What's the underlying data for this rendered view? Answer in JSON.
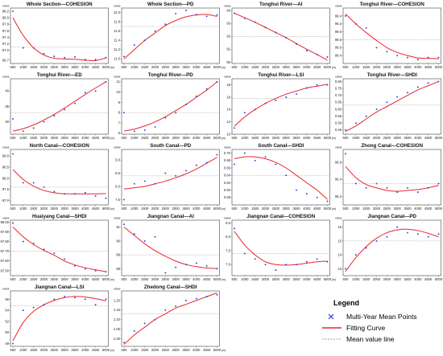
{
  "x_tick_labels": [
    "500",
    "1000",
    "1500",
    "2000",
    "2500",
    "3000",
    "3500",
    "4000",
    "4500",
    "5000"
  ],
  "x_unit": "(m)",
  "y_axis_name": "value",
  "legend": {
    "title": "Legend",
    "points_label": "Multi-Year Mean Points",
    "curve_label": "Fitting Curve",
    "mean_label": "Mean value line"
  },
  "colors": {
    "points": "#2c3fd6",
    "fitting_curve": "#e8262b",
    "mean_line": "#9a9a9a"
  },
  "chart_data": [
    {
      "type": "scatter",
      "title": "Whole Section—COHESION",
      "x": [
        500,
        1000,
        1500,
        2000,
        2500,
        3000,
        3500,
        4000,
        4500,
        5000
      ],
      "values": [
        98.2,
        97.08,
        97.08,
        96.9,
        96.82,
        96.78,
        96.8,
        96.72,
        96.72,
        96.78
      ],
      "fit": [
        98.0,
        97.46,
        97.08,
        96.86,
        96.76,
        96.74,
        96.73,
        96.7,
        96.69,
        96.77
      ],
      "mean": 97.1,
      "ylim": [
        96.6,
        98.3
      ],
      "yticks": [
        [
          "96.7",
          "96.7"
        ],
        [
          "97.0",
          "97.0"
        ],
        [
          "97.2",
          "97.2"
        ],
        [
          "97.4",
          "97.4"
        ],
        [
          "97.6",
          "97.6"
        ],
        [
          "97.8",
          "97.8"
        ],
        [
          "98.0",
          "98.0"
        ],
        [
          "98.2",
          "98.2"
        ]
      ]
    },
    {
      "type": "scatter",
      "title": "Whole Section—PD",
      "x": [
        500,
        1000,
        1500,
        2000,
        2500,
        3000,
        3500,
        4000,
        4500,
        5000
      ],
      "values": [
        11.05,
        11.3,
        11.4,
        11.6,
        11.75,
        11.98,
        12.05,
        11.96,
        11.92,
        11.95
      ],
      "fit": [
        11.0,
        11.2,
        11.4,
        11.56,
        11.72,
        11.83,
        11.91,
        11.95,
        11.96,
        11.92
      ],
      "mean": 11.7,
      "ylim": [
        10.9,
        12.1
      ],
      "yticks": [
        [
          "11.0",
          "11.0"
        ],
        [
          "11.2",
          "11.2"
        ],
        [
          "11.4",
          "11.4"
        ],
        [
          "11.6",
          "11.6"
        ],
        [
          "11.8",
          "11.8"
        ],
        [
          "12.0",
          "12.0"
        ]
      ]
    },
    {
      "type": "scatter",
      "title": "Tonghui River—AI",
      "x": [
        500,
        1000,
        1500,
        2000,
        2500,
        3000,
        3500,
        4000,
        4500,
        5000
      ],
      "values": [
        93.8,
        93.4,
        93.1,
        92.7,
        92.3,
        91.9,
        91.4,
        90.9,
        90.6,
        90.4
      ],
      "fit": [
        93.8,
        93.45,
        93.1,
        92.7,
        92.3,
        91.9,
        91.45,
        91.0,
        90.6,
        90.15
      ],
      "mean": 92.0,
      "ylim": [
        89.9,
        94.2
      ],
      "yticks": [
        [
          "90",
          "90"
        ],
        [
          "91",
          "91"
        ],
        [
          "92",
          "92"
        ],
        [
          "93",
          "93"
        ],
        [
          "94",
          "94"
        ]
      ]
    },
    {
      "type": "scatter",
      "title": "Tonghui River—COHESION",
      "x": [
        500,
        1000,
        1500,
        2000,
        2500,
        3000,
        3500,
        4000,
        4500,
        5000
      ],
      "values": [
        99.4,
        99.2,
        99.1,
        98.6,
        98.5,
        98.4,
        98.35,
        98.3,
        98.35,
        98.35
      ],
      "fit": [
        99.45,
        99.2,
        98.98,
        98.78,
        98.6,
        98.48,
        98.4,
        98.34,
        98.33,
        98.32
      ],
      "mean": 98.8,
      "ylim": [
        98.2,
        99.6
      ],
      "yticks": [
        [
          "98.4",
          "98.4"
        ],
        [
          "98.6",
          "98.6"
        ],
        [
          "98.8",
          "98.8"
        ],
        [
          "99.0",
          "99.0"
        ],
        [
          "99.2",
          "99.2"
        ],
        [
          "99.4",
          "99.4"
        ]
      ]
    },
    {
      "type": "scatter",
      "title": "Tonghui River—ED",
      "x": [
        500,
        1000,
        1500,
        2000,
        2500,
        3000,
        3500,
        4000,
        4500,
        5000
      ],
      "values": [
        31.0,
        27.0,
        28.0,
        30.0,
        32.0,
        34.0,
        36.0,
        39.5,
        40.0,
        43.0
      ],
      "fit": [
        27.0,
        27.8,
        29.0,
        30.6,
        32.4,
        34.5,
        36.7,
        38.9,
        41.0,
        43.0
      ],
      "mean": 33.0,
      "ylim": [
        26,
        44
      ],
      "yticks": [
        [
          "30",
          "30"
        ],
        [
          "35",
          "35"
        ],
        [
          "40",
          "40"
        ]
      ]
    },
    {
      "type": "scatter",
      "title": "Tonghui River—PD",
      "x": [
        500,
        1000,
        1500,
        2000,
        2500,
        3000,
        3500,
        4000,
        4500,
        5000
      ],
      "values": [
        8.0,
        6.2,
        6.3,
        6.6,
        7.5,
        8.0,
        8.8,
        9.6,
        10.3,
        11.0
      ],
      "fit": [
        6.2,
        6.4,
        6.7,
        7.1,
        7.6,
        8.2,
        8.8,
        9.5,
        10.2,
        11.0
      ],
      "mean": 8.0,
      "ylim": [
        5.9,
        11.3
      ],
      "yticks": [
        [
          "6",
          "6"
        ],
        [
          "7",
          "7"
        ],
        [
          "8",
          "8"
        ],
        [
          "9",
          "9"
        ],
        [
          "10",
          "10"
        ],
        [
          "11",
          "11"
        ]
      ]
    },
    {
      "type": "scatter",
      "title": "Tonghui River—LSI",
      "x": [
        500,
        1000,
        1500,
        2000,
        2500,
        3000,
        3500,
        4000,
        4500,
        5000
      ],
      "values": [
        11.0,
        13.5,
        14.0,
        15.0,
        15.5,
        16.0,
        16.5,
        17.5,
        18.0,
        18.0
      ],
      "fit": [
        11.3,
        12.8,
        14.0,
        15.0,
        15.8,
        16.5,
        17.0,
        17.5,
        17.8,
        18.1
      ],
      "mean": 15.8,
      "ylim": [
        10,
        19
      ],
      "yticks": [
        [
          "10",
          "10"
        ],
        [
          "12",
          "12"
        ],
        [
          "14",
          "14"
        ],
        [
          "16",
          "16"
        ],
        [
          "18",
          "18"
        ]
      ]
    },
    {
      "type": "scatter",
      "title": "Tonghui River—SHDI",
      "x": [
        500,
        1000,
        1500,
        2000,
        2500,
        3000,
        3500,
        4000,
        4500,
        5000
      ],
      "values": [
        0.45,
        0.5,
        0.55,
        0.6,
        0.65,
        0.69,
        0.72,
        0.76,
        0.79,
        0.8
      ],
      "fit": [
        0.44,
        0.48,
        0.53,
        0.58,
        0.62,
        0.66,
        0.7,
        0.74,
        0.77,
        0.8
      ],
      "mean": 0.63,
      "ylim": [
        0.42,
        0.82
      ],
      "yticks": [
        [
          "0.45",
          "0.45"
        ],
        [
          "0.50",
          "0.50"
        ],
        [
          "0.55",
          "0.55"
        ],
        [
          "0.60",
          "0.60"
        ],
        [
          "0.65",
          "0.65"
        ],
        [
          "0.70",
          "0.70"
        ],
        [
          "0.75",
          "0.75"
        ],
        [
          "0.80",
          "0.80"
        ]
      ]
    },
    {
      "type": "scatter",
      "title": "North Canal—COHESION",
      "x": [
        500,
        1000,
        1500,
        2000,
        2500,
        3000,
        3500,
        4000,
        4500,
        5000
      ],
      "values": [
        99.1,
        97.8,
        97.8,
        97.6,
        97.4,
        97.3,
        97.3,
        97.35,
        97.2,
        97.1
      ],
      "fit": [
        98.4,
        97.95,
        97.65,
        97.45,
        97.35,
        97.3,
        97.3,
        97.3,
        97.3,
        97.31
      ],
      "mean": 97.6,
      "ylim": [
        96.8,
        99.3
      ],
      "yticks": [
        [
          "97.0",
          "97.0"
        ],
        [
          "97.5",
          "97.5"
        ],
        [
          "98.0",
          "98.0"
        ],
        [
          "98.5",
          "98.5"
        ],
        [
          "99.0",
          "99.0"
        ]
      ]
    },
    {
      "type": "scatter",
      "title": "South Canal—PD",
      "x": [
        500,
        1000,
        1500,
        2000,
        2500,
        3000,
        3500,
        4000,
        4500,
        5000
      ],
      "values": [
        7.5,
        8.1,
        8.2,
        8.1,
        8.5,
        8.4,
        8.6,
        8.8,
        8.9,
        9.2
      ],
      "fit": [
        7.9,
        7.95,
        8.0,
        8.1,
        8.2,
        8.33,
        8.48,
        8.66,
        8.88,
        9.1
      ],
      "mean": 8.4,
      "ylim": [
        7.3,
        9.4
      ],
      "yticks": [
        [
          "7.5",
          "7.5"
        ],
        [
          "8.0",
          "8.0"
        ],
        [
          "8.5",
          "8.5"
        ],
        [
          "9.0",
          "9.0"
        ]
      ]
    },
    {
      "type": "scatter",
      "title": "South Canal—SHDI",
      "x": [
        500,
        1000,
        1500,
        2000,
        2500,
        3000,
        3500,
        4000,
        4500,
        5000
      ],
      "values": [
        0.67,
        0.7,
        0.68,
        0.69,
        0.67,
        0.64,
        0.6,
        0.59,
        0.58,
        0.57
      ],
      "fit": [
        0.685,
        0.69,
        0.69,
        0.685,
        0.675,
        0.66,
        0.64,
        0.62,
        0.6,
        0.575
      ],
      "mean": 0.64,
      "ylim": [
        0.56,
        0.71
      ],
      "yticks": [
        [
          "0.58",
          "0.58"
        ],
        [
          "0.60",
          "0.60"
        ],
        [
          "0.62",
          "0.62"
        ],
        [
          "0.64",
          "0.64"
        ],
        [
          "0.66",
          "0.66"
        ],
        [
          "0.68",
          "0.68"
        ],
        [
          "0.70",
          "0.70"
        ]
      ]
    },
    {
      "type": "scatter",
      "title": "Zhong Canal—COHESION",
      "x": [
        500,
        1000,
        1500,
        2000,
        2500,
        3000,
        3500,
        4000,
        4500,
        5000
      ],
      "values": [
        96.7,
        96.35,
        96.3,
        96.35,
        96.3,
        96.25,
        96.3,
        96.25,
        96.3,
        96.35
      ],
      "fit": [
        96.55,
        96.42,
        96.34,
        96.3,
        96.27,
        96.26,
        96.27,
        96.28,
        96.3,
        96.33
      ],
      "mean": 96.35,
      "ylim": [
        96.1,
        96.75
      ],
      "yticks": [
        [
          "96.2",
          "96.2"
        ],
        [
          "96.4",
          "96.4"
        ],
        [
          "96.6",
          "96.6"
        ]
      ]
    },
    {
      "type": "scatter",
      "title": "Huaiyang Canal—SHDI",
      "x": [
        500,
        1000,
        1500,
        2000,
        2500,
        3000,
        3500,
        4000,
        4500,
        5000
      ],
      "values": [
        97.99,
        97.8,
        97.78,
        97.72,
        97.68,
        97.62,
        97.55,
        97.52,
        97.5,
        97.49
      ],
      "fit": [
        97.95,
        97.85,
        97.77,
        97.71,
        97.66,
        97.6,
        97.56,
        97.53,
        97.51,
        97.49
      ],
      "mean": 97.7,
      "ylim": [
        97.45,
        98.02
      ],
      "yticks": [
        [
          "97.50",
          "97.50"
        ],
        [
          "97.60",
          "97.60"
        ],
        [
          "97.70",
          "97.70"
        ],
        [
          "97.80",
          "97.80"
        ],
        [
          "97.90",
          "97.90"
        ],
        [
          "98.00",
          "98.00"
        ]
      ]
    },
    {
      "type": "scatter",
      "title": "Jiangnan Canal—AI",
      "x": [
        500,
        1000,
        1500,
        2000,
        2500,
        3000,
        3500,
        4000,
        4500,
        5000
      ],
      "values": [
        91.2,
        90.5,
        90.0,
        90.3,
        87.7,
        88.1,
        88.3,
        88.4,
        88.2,
        88.0
      ],
      "fit": [
        91.0,
        90.4,
        89.8,
        89.3,
        88.9,
        88.55,
        88.3,
        88.15,
        88.05,
        88.02
      ],
      "mean": 89.0,
      "ylim": [
        87.5,
        91.5
      ],
      "yticks": [
        [
          "88",
          "88"
        ],
        [
          "89",
          "89"
        ],
        [
          "90",
          "90"
        ],
        [
          "91",
          "91"
        ]
      ]
    },
    {
      "type": "scatter",
      "title": "Jiangnan Canal—COHESION",
      "x": [
        500,
        1000,
        1500,
        2000,
        2500,
        3000,
        3500,
        4000,
        4500,
        5000
      ],
      "values": [
        8.3,
        7.4,
        7.2,
        7.0,
        6.8,
        7.0,
        7.0,
        7.1,
        7.2,
        7.1
      ],
      "fit": [
        8.2,
        7.7,
        7.35,
        7.1,
        7.0,
        6.98,
        7.0,
        7.05,
        7.1,
        7.12
      ],
      "mean": 7.4,
      "ylim": [
        6.6,
        8.6
      ],
      "yticks": [
        [
          "7.0",
          "7.0"
        ],
        [
          "7.5",
          "7.5"
        ],
        [
          "8.0",
          "8.0"
        ],
        [
          "8.5",
          "8.5"
        ]
      ]
    },
    {
      "type": "scatter",
      "title": "Jiangnan Canal—PD",
      "x": [
        500,
        1000,
        1500,
        2000,
        2500,
        3000,
        3500,
        4000,
        4500,
        5000
      ],
      "values": [
        13.0,
        14.0,
        14.5,
        15.0,
        15.3,
        16.0,
        15.6,
        15.5,
        15.3,
        15.5
      ],
      "fit": [
        12.8,
        13.8,
        14.6,
        15.2,
        15.6,
        15.8,
        15.85,
        15.75,
        15.55,
        15.3
      ],
      "mean": 15.0,
      "ylim": [
        12.5,
        16.5
      ],
      "yticks": [
        [
          "13",
          "13"
        ],
        [
          "14",
          "14"
        ],
        [
          "15",
          "15"
        ],
        [
          "16",
          "16"
        ]
      ]
    },
    {
      "type": "scatter",
      "title": "Jiangnan Canal—LSI",
      "x": [
        500,
        1000,
        1500,
        2000,
        2500,
        3000,
        3500,
        4000,
        4500,
        5000
      ],
      "values": [
        48.0,
        54.0,
        54.5,
        55.0,
        56.0,
        56.5,
        56.3,
        56.0,
        55.0,
        56.0
      ],
      "fit": [
        48.5,
        51.8,
        53.8,
        55.0,
        55.8,
        56.3,
        56.5,
        56.4,
        56.1,
        55.7
      ],
      "mean": 54.8,
      "ylim": [
        47.5,
        57.5
      ],
      "yticks": [
        [
          "48",
          "48"
        ],
        [
          "50",
          "50"
        ],
        [
          "52",
          "52"
        ],
        [
          "54",
          "54"
        ],
        [
          "56",
          "56"
        ]
      ]
    },
    {
      "type": "scatter",
      "title": "Zhedong Canal—SHDI",
      "x": [
        500,
        1000,
        1500,
        2000,
        2500,
        3000,
        3500,
        4000,
        4500,
        5000
      ],
      "values": [
        0.98,
        1.04,
        1.08,
        1.1,
        1.15,
        1.17,
        1.2,
        1.21,
        1.22,
        1.23
      ],
      "fit": [
        0.97,
        1.02,
        1.06,
        1.1,
        1.13,
        1.16,
        1.18,
        1.2,
        1.22,
        1.24
      ],
      "mean": 1.13,
      "ylim": [
        0.96,
        1.25
      ],
      "yticks": [
        [
          "1.00",
          "1.00"
        ],
        [
          "1.05",
          "1.05"
        ],
        [
          "1.10",
          "1.10"
        ],
        [
          "1.15",
          "1.15"
        ],
        [
          "1.20",
          "1.20"
        ]
      ]
    }
  ]
}
